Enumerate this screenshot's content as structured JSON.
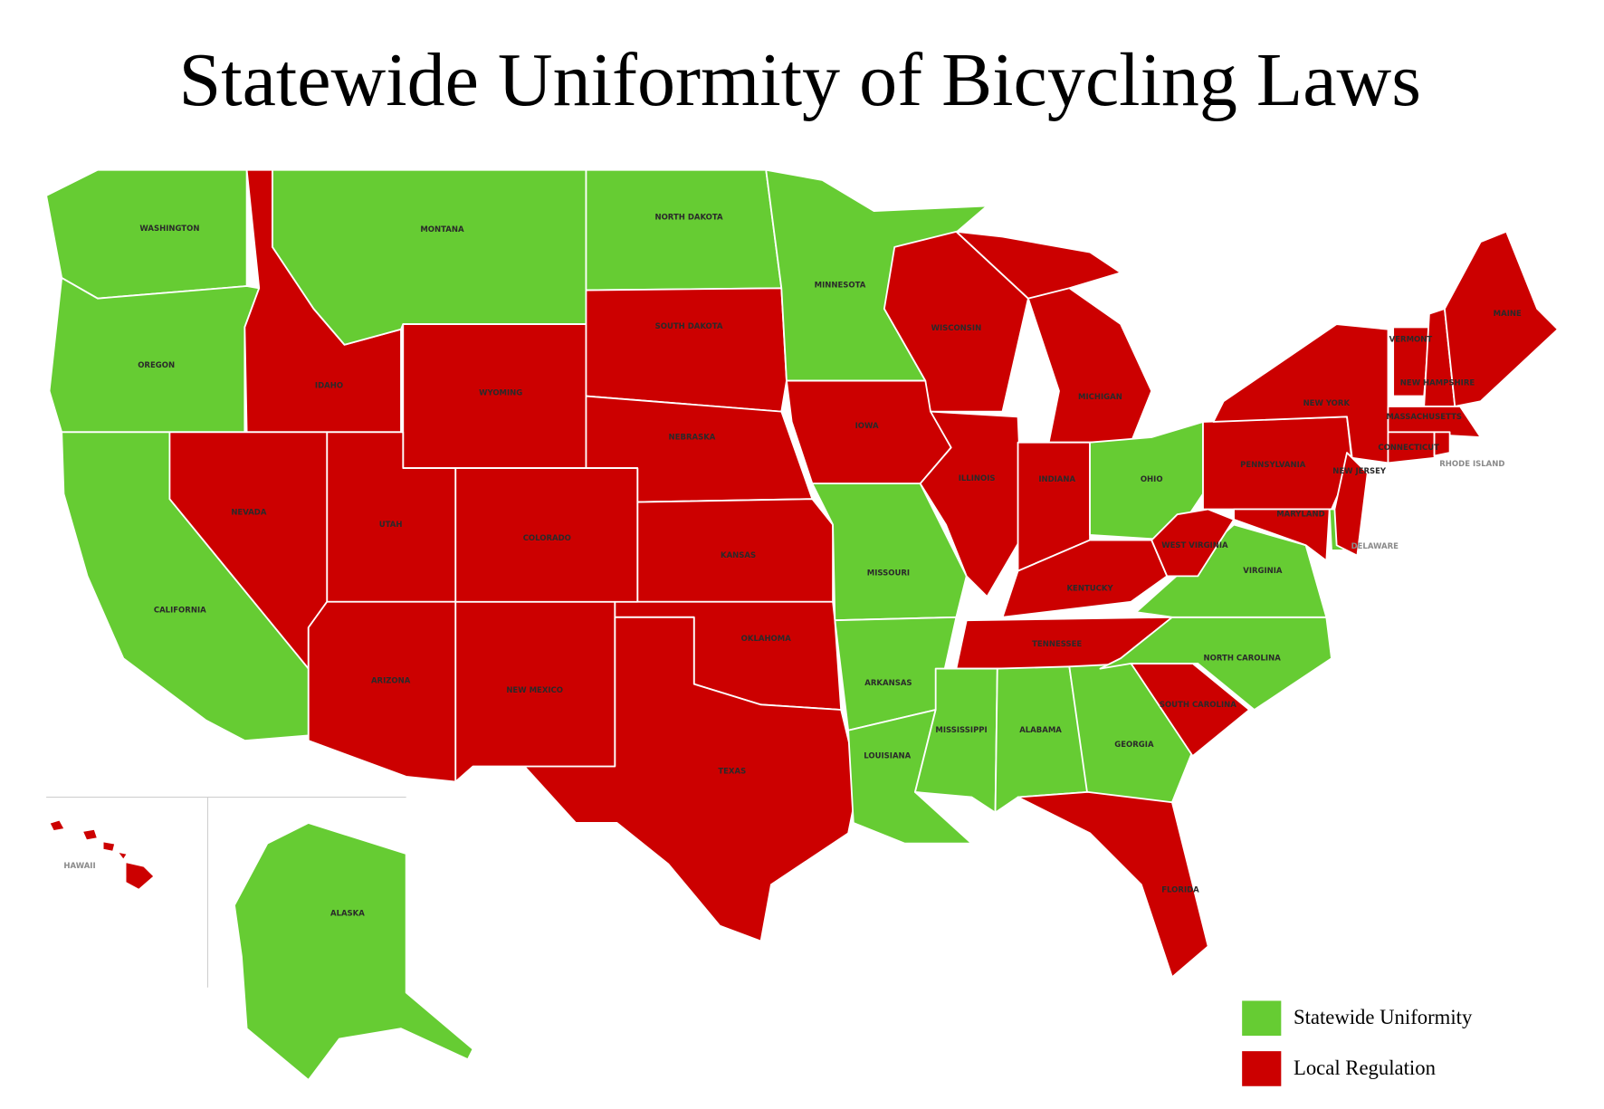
{
  "title": "Statewide Uniformity of Bicycling Laws",
  "legend": [
    {
      "label": "Statewide Uniformity",
      "color": "#66cc33"
    },
    {
      "label": "Local Regulation",
      "color": "#cc0000"
    }
  ],
  "states": [
    {
      "label": "WASHINGTON",
      "statewide_uniformity": true
    },
    {
      "label": "OREGON",
      "statewide_uniformity": true
    },
    {
      "label": "CALIFORNIA",
      "statewide_uniformity": true
    },
    {
      "label": "IDAHO",
      "statewide_uniformity": false
    },
    {
      "label": "MONTANA",
      "statewide_uniformity": true
    },
    {
      "label": "WYOMING",
      "statewide_uniformity": false
    },
    {
      "label": "NORTH DAKOTA",
      "statewide_uniformity": true
    },
    {
      "label": "SOUTH DAKOTA",
      "statewide_uniformity": false
    },
    {
      "label": "NEBRASKA",
      "statewide_uniformity": false
    },
    {
      "label": "KANSAS",
      "statewide_uniformity": false
    },
    {
      "label": "OKLAHOMA",
      "statewide_uniformity": false
    },
    {
      "label": "TEXAS",
      "statewide_uniformity": false
    },
    {
      "label": "NEW MEXICO",
      "statewide_uniformity": false
    },
    {
      "label": "COLORADO",
      "statewide_uniformity": false
    },
    {
      "label": "UTAH",
      "statewide_uniformity": false
    },
    {
      "label": "NEVADA",
      "statewide_uniformity": false
    },
    {
      "label": "ARIZONA",
      "statewide_uniformity": false
    },
    {
      "label": "MINNESOTA",
      "statewide_uniformity": true
    },
    {
      "label": "IOWA",
      "statewide_uniformity": false
    },
    {
      "label": "MISSOURI",
      "statewide_uniformity": true
    },
    {
      "label": "ARKANSAS",
      "statewide_uniformity": true
    },
    {
      "label": "LOUISIANA",
      "statewide_uniformity": true
    },
    {
      "label": "WISCONSIN",
      "statewide_uniformity": false
    },
    {
      "label": "ILLINOIS",
      "statewide_uniformity": false
    },
    {
      "label": "MICHIGAN",
      "statewide_uniformity": false
    },
    {
      "label": "INDIANA",
      "statewide_uniformity": false
    },
    {
      "label": "OHIO",
      "statewide_uniformity": true
    },
    {
      "label": "KENTUCKY",
      "statewide_uniformity": false
    },
    {
      "label": "TENNESSEE",
      "statewide_uniformity": false
    },
    {
      "label": "MISSISSIPPI",
      "statewide_uniformity": true
    },
    {
      "label": "ALABAMA",
      "statewide_uniformity": true
    },
    {
      "label": "GEORGIA",
      "statewide_uniformity": true
    },
    {
      "label": "FLORIDA",
      "statewide_uniformity": false
    },
    {
      "label": "SOUTH CAROLINA",
      "statewide_uniformity": false
    },
    {
      "label": "NORTH CAROLINA",
      "statewide_uniformity": true
    },
    {
      "label": "VIRGINIA",
      "statewide_uniformity": true
    },
    {
      "label": "WEST VIRGINIA",
      "statewide_uniformity": false
    },
    {
      "label": "PENNSYLVANIA",
      "statewide_uniformity": false
    },
    {
      "label": "NEW YORK",
      "statewide_uniformity": false
    },
    {
      "label": "MARYLAND",
      "statewide_uniformity": false
    },
    {
      "label": "DELAWARE",
      "statewide_uniformity": true
    },
    {
      "label": "NEW JERSEY",
      "statewide_uniformity": false
    },
    {
      "label": "VERMONT",
      "statewide_uniformity": false
    },
    {
      "label": "NEW HAMPSHIRE",
      "statewide_uniformity": false
    },
    {
      "label": "MAINE",
      "statewide_uniformity": false
    },
    {
      "label": "MASSACHUSETTS",
      "statewide_uniformity": false
    },
    {
      "label": "CONNECTICUT",
      "statewide_uniformity": false
    },
    {
      "label": "RHODE ISLAND",
      "statewide_uniformity": false
    },
    {
      "label": "HAWAII",
      "statewide_uniformity": false
    },
    {
      "label": "ALASKA",
      "statewide_uniformity": true
    }
  ]
}
